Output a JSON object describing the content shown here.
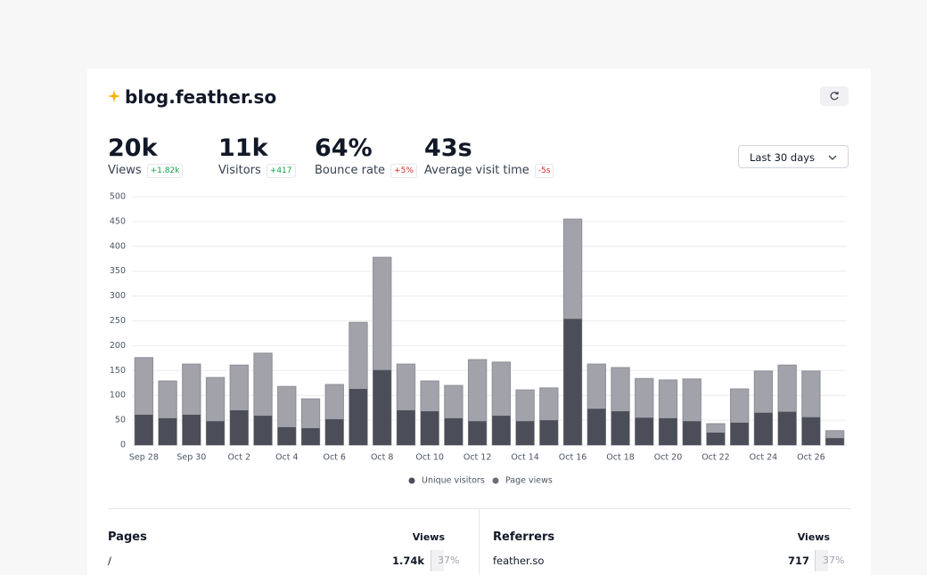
{
  "header": {
    "title": "blog.feather.so"
  },
  "stats": [
    {
      "value": "20k",
      "label": "Views",
      "change": "+1.82k",
      "trend": "up"
    },
    {
      "value": "11k",
      "label": "Visitors",
      "change": "+417",
      "trend": "up"
    },
    {
      "value": "64%",
      "label": "Bounce rate",
      "change": "+5%",
      "trend": "down"
    },
    {
      "value": "43s",
      "label": "Average visit time",
      "change": "-5s",
      "trend": "down"
    }
  ],
  "range": "Last 30 days",
  "chart_data": {
    "type": "bar",
    "categories": [
      "Sep 28",
      null,
      "Sep 30",
      null,
      "Oct 2",
      null,
      "Oct 4",
      null,
      "Oct 6",
      null,
      "Oct 8",
      null,
      "Oct 10",
      null,
      "Oct 12",
      null,
      "Oct 14",
      null,
      "Oct 16",
      null,
      "Oct 18",
      null,
      "Oct 20",
      null,
      "Oct 22",
      null,
      "Oct 24",
      null,
      "Oct 26",
      null
    ],
    "series": [
      {
        "name": "Unique visitors",
        "color": "#4b4e58",
        "values": [
          61,
          54,
          61,
          48,
          70,
          59,
          36,
          34,
          52,
          113,
          151,
          70,
          68,
          54,
          48,
          59,
          48,
          50,
          254,
          73,
          68,
          55,
          54,
          48,
          25,
          45,
          65,
          67,
          56,
          14
        ]
      },
      {
        "name": "Page views",
        "color": "#a2a3aa",
        "values": [
          176,
          129,
          163,
          136,
          161,
          185,
          118,
          93,
          122,
          247,
          378,
          163,
          129,
          120,
          172,
          167,
          111,
          115,
          455,
          163,
          156,
          134,
          131,
          133,
          43,
          113,
          149,
          161,
          149,
          29
        ]
      }
    ],
    "ylim": [
      0,
      500
    ],
    "yticks": [
      0,
      50,
      100,
      150,
      200,
      250,
      300,
      350,
      400,
      450,
      500
    ],
    "grid": true
  },
  "pages": {
    "title": "Pages",
    "column": "Views",
    "rows": [
      [
        "/",
        "1.74k",
        "37%"
      ]
    ]
  },
  "referrers": {
    "title": "Referrers",
    "column": "Views",
    "rows": [
      [
        "feather.so",
        "717",
        "37%"
      ]
    ]
  }
}
